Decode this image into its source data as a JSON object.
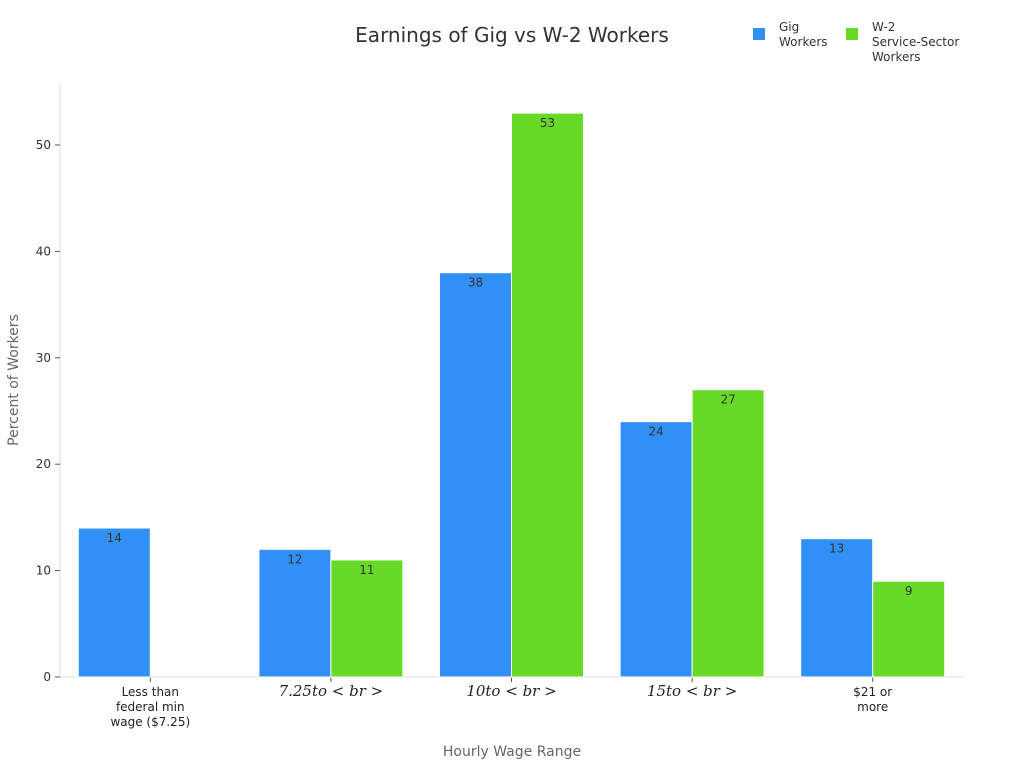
{
  "chart_data": {
    "type": "bar",
    "title": "Earnings of Gig vs W-2 Workers",
    "xlabel": "Hourly Wage Range",
    "ylabel": "Percent of Workers",
    "categories": [
      [
        "Less than",
        "federal min",
        "wage ($7.25)"
      ],
      [
        "7.25to < br >"
      ],
      [
        "10to < br >"
      ],
      [
        "15to < br >"
      ],
      [
        "$21 or",
        "more"
      ]
    ],
    "math_categories": [
      false,
      true,
      true,
      true,
      false
    ],
    "series": [
      {
        "name": "Gig Workers",
        "legend_lines": [
          "Gig",
          "Workers"
        ],
        "color": "#3090F5",
        "values": [
          14,
          12,
          38,
          24,
          13
        ]
      },
      {
        "name": "W-2 Service-Sector Workers",
        "legend_lines": [
          "W-2",
          "Service-Sector",
          "Workers"
        ],
        "color": "#66DA26",
        "values": [
          null,
          11,
          53,
          27,
          9
        ]
      }
    ],
    "ylim": [
      0,
      56
    ],
    "yticks": [
      0,
      10,
      20,
      30,
      40,
      50
    ],
    "grid": false,
    "legend": "top-right",
    "data_labels": true
  }
}
